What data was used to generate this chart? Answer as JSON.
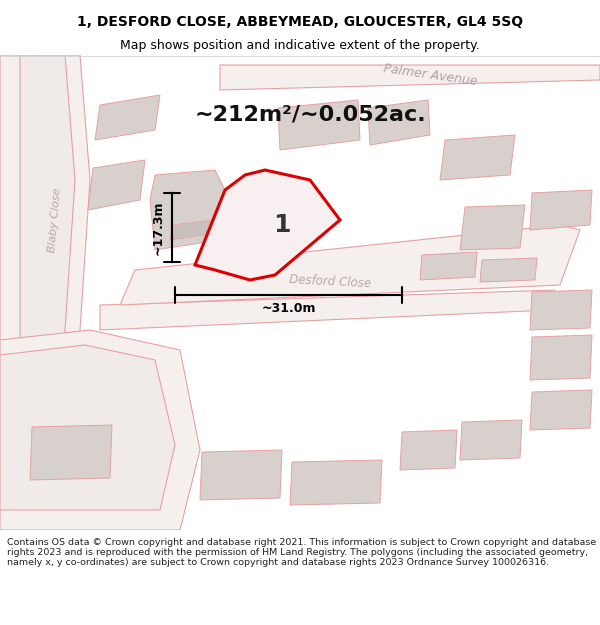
{
  "title_line1": "1, DESFORD CLOSE, ABBEYMEAD, GLOUCESTER, GL4 5SQ",
  "title_line2": "Map shows position and indicative extent of the property.",
  "footer_text": "Contains OS data © Crown copyright and database right 2021. This information is subject to Crown copyright and database rights 2023 and is reproduced with the permission of HM Land Registry. The polygons (including the associated geometry, namely x, y co-ordinates) are subject to Crown copyright and database rights 2023 Ordnance Survey 100026316.",
  "bg_color": "#f5f0ee",
  "map_bg": "#f0ebe8",
  "title_bg": "#ffffff",
  "footer_bg": "#ffffff",
  "area_text": "~212m²/~0.052ac.",
  "width_label": "~31.0m",
  "height_label": "~17.3m",
  "property_label": "1",
  "road_color": "#e8a0a0",
  "building_color": "#d8d0cc",
  "property_outline_color": "#dd0000",
  "dimension_color": "#000000",
  "road_label_color": "#c0a0a0",
  "street_label1": "Blaby Close",
  "street_label2": "Desford Close",
  "street_label3": "Palmer Avenue"
}
